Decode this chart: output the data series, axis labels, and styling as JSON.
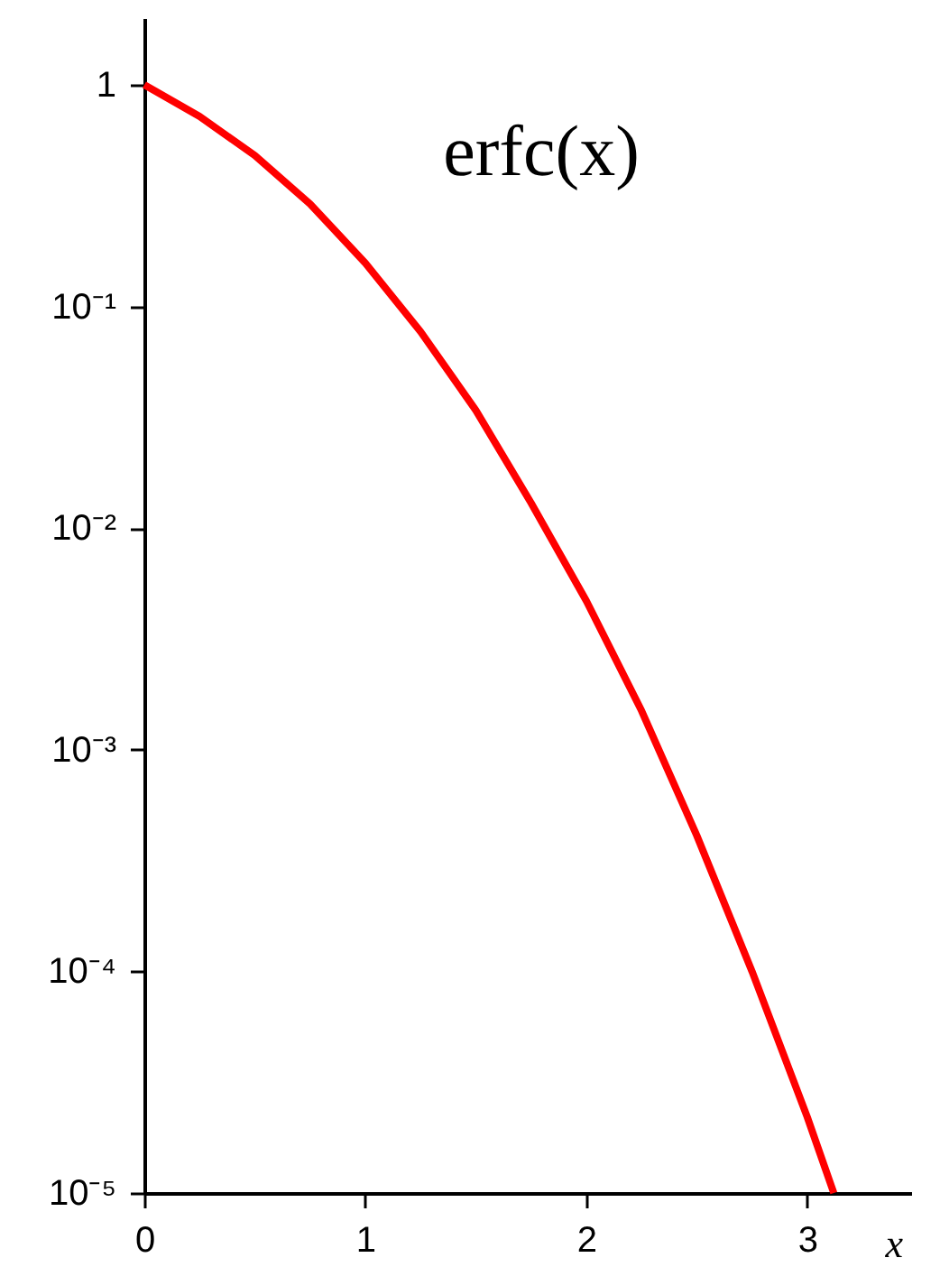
{
  "chart_data": {
    "type": "line",
    "xlabel": "x",
    "annotations": [
      "erfc(x)"
    ],
    "x": [
      0,
      0.25,
      0.5,
      0.75,
      1,
      1.25,
      1.5,
      1.75,
      2,
      2.25,
      2.5,
      2.75,
      3,
      3.12
    ],
    "series": [
      {
        "color": "#ff0000",
        "values": [
          1,
          0.72,
          0.48,
          0.29,
          0.157,
          0.077,
          0.034,
          0.013,
          0.0047,
          0.0015,
          0.00041,
          0.0001,
          2.2e-05,
          1e-05
        ]
      }
    ],
    "xlim": [
      0,
      3.47
    ],
    "xticks": [
      0,
      1,
      2,
      3
    ],
    "ylim": [
      1e-05,
      2
    ],
    "yticks": [
      {
        "value": 1,
        "label": "1"
      },
      {
        "value": 0.1,
        "label": "10⁻¹"
      },
      {
        "value": 0.01,
        "label": "10⁻²"
      },
      {
        "value": 0.001,
        "label": "10⁻³"
      },
      {
        "value": 0.0001,
        "label": "10⁻⁴"
      },
      {
        "value": 1e-05,
        "label": "10⁻⁵"
      }
    ],
    "log": "y",
    "grid": false,
    "marker": "none",
    "line_style": "solid"
  }
}
